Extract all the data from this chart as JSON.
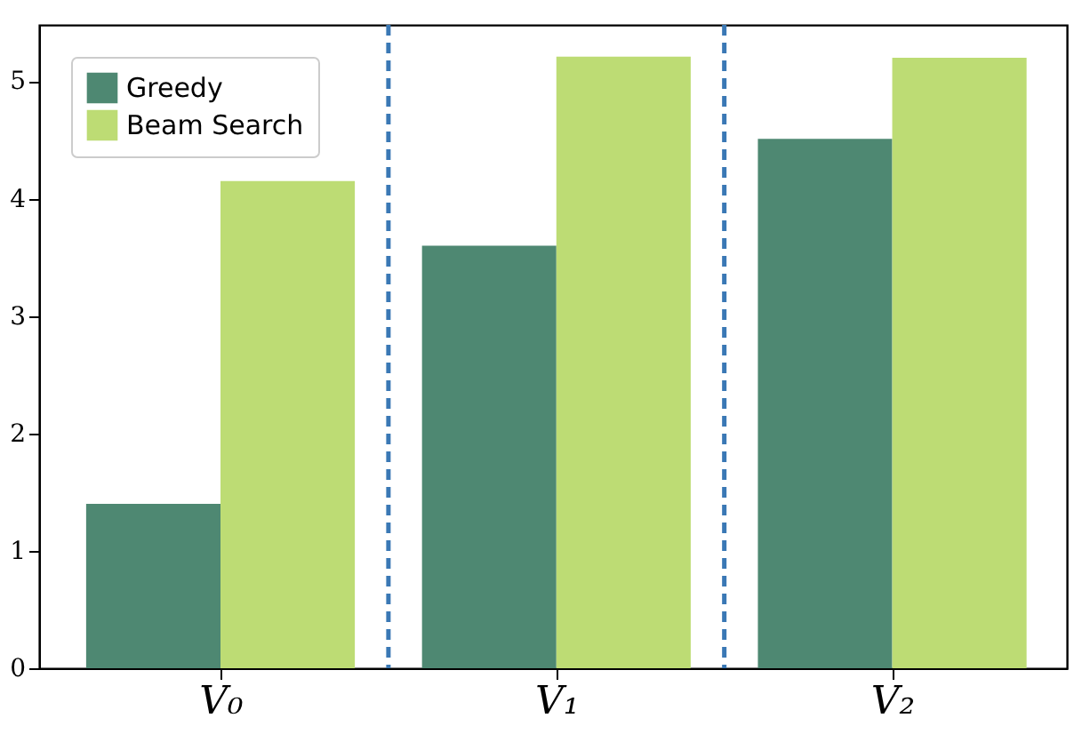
{
  "chart_data": {
    "type": "bar",
    "categories": [
      "V₀",
      "V₁",
      "V₂"
    ],
    "series": [
      {
        "name": "Greedy",
        "color": "#4e8872",
        "values": [
          1.4,
          3.6,
          4.51
        ]
      },
      {
        "name": "Beam Search",
        "color": "#bddc74",
        "values": [
          4.15,
          5.21,
          5.2
        ]
      }
    ],
    "ylim": [
      0,
      5.48
    ],
    "yticks": [
      0,
      1,
      2,
      3,
      4,
      5
    ],
    "grid": false,
    "legend": "top left"
  }
}
